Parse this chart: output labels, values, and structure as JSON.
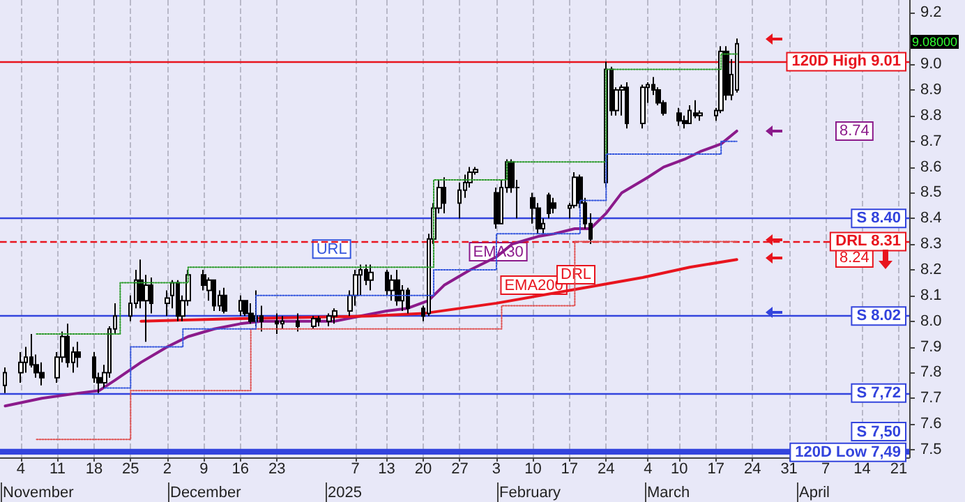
{
  "chart_data": {
    "type": "candlestick",
    "x": [
      "2024-11-01",
      "2024-11-04",
      "2024-11-05",
      "2024-11-06",
      "2024-11-07",
      "2024-11-08",
      "2024-11-11",
      "2024-11-12",
      "2024-11-13",
      "2024-11-14",
      "2024-11-15",
      "2024-11-18",
      "2024-11-19",
      "2024-11-20",
      "2024-11-21",
      "2024-11-22",
      "2024-11-25",
      "2024-11-26",
      "2024-11-27",
      "2024-11-28",
      "2024-11-29",
      "2024-12-02",
      "2024-12-03",
      "2024-12-04",
      "2024-12-05",
      "2024-12-06",
      "2024-12-09",
      "2024-12-10",
      "2024-12-11",
      "2024-12-12",
      "2024-12-13",
      "2024-12-16",
      "2024-12-17",
      "2024-12-18",
      "2024-12-19",
      "2024-12-20",
      "2024-12-23",
      "2024-12-24",
      "2024-12-27",
      "2024-12-30",
      "2024-12-31",
      "2025-01-02",
      "2025-01-03",
      "2025-01-06",
      "2025-01-07",
      "2025-01-08",
      "2025-01-09",
      "2025-01-10",
      "2025-01-13",
      "2025-01-14",
      "2025-01-15",
      "2025-01-16",
      "2025-01-17",
      "2025-01-20",
      "2025-01-21",
      "2025-01-22",
      "2025-01-23",
      "2025-01-24",
      "2025-01-27",
      "2025-01-28",
      "2025-01-29",
      "2025-01-30",
      "2025-02-03",
      "2025-02-04",
      "2025-02-05",
      "2025-02-06",
      "2025-02-07",
      "2025-02-10",
      "2025-02-11",
      "2025-02-12",
      "2025-02-13",
      "2025-02-14",
      "2025-02-17",
      "2025-02-18",
      "2025-02-19",
      "2025-02-20",
      "2025-02-21",
      "2025-02-24",
      "2025-02-25",
      "2025-02-26",
      "2025-02-27",
      "2025-02-28",
      "2025-03-03",
      "2025-03-04",
      "2025-03-05",
      "2025-03-06",
      "2025-03-07",
      "2025-03-10",
      "2025-03-11",
      "2025-03-12",
      "2025-03-13",
      "2025-03-14",
      "2025-03-17",
      "2025-03-18",
      "2025-03-19",
      "2025-03-20",
      "2025-03-21"
    ],
    "ohlc": [
      [
        7.75,
        7.82,
        7.72,
        7.8
      ],
      [
        7.8,
        7.88,
        7.76,
        7.84
      ],
      [
        7.84,
        7.9,
        7.8,
        7.86
      ],
      [
        7.86,
        7.95,
        7.82,
        7.83
      ],
      [
        7.83,
        7.87,
        7.78,
        7.8
      ],
      [
        7.8,
        7.84,
        7.75,
        7.78
      ],
      [
        7.78,
        7.88,
        7.76,
        7.86
      ],
      [
        7.86,
        7.96,
        7.84,
        7.94
      ],
      [
        7.94,
        7.99,
        7.82,
        7.84
      ],
      [
        7.84,
        7.9,
        7.8,
        7.88
      ],
      [
        7.88,
        7.92,
        7.82,
        7.86
      ],
      [
        7.86,
        7.88,
        7.76,
        7.78
      ],
      [
        7.78,
        7.8,
        7.72,
        7.76
      ],
      [
        7.76,
        7.83,
        7.74,
        7.8
      ],
      [
        7.8,
        7.98,
        7.78,
        7.97
      ],
      [
        7.97,
        8.07,
        7.95,
        8.02
      ],
      [
        8.02,
        8.1,
        8.0,
        8.07
      ],
      [
        8.07,
        8.2,
        8.05,
        8.16
      ],
      [
        8.16,
        8.24,
        8.05,
        8.08
      ],
      [
        8.08,
        8.18,
        7.92,
        8.14
      ],
      [
        8.14,
        8.17,
        8.03,
        8.07
      ],
      [
        8.07,
        8.12,
        8.02,
        8.09
      ],
      [
        8.1,
        8.16,
        8.05,
        8.15
      ],
      [
        8.15,
        8.16,
        8.0,
        8.02
      ],
      [
        8.02,
        8.1,
        8.0,
        8.08
      ],
      [
        8.08,
        8.2,
        8.06,
        8.18
      ],
      [
        8.18,
        8.2,
        8.12,
        8.14
      ],
      [
        8.12,
        8.17,
        8.08,
        8.16
      ],
      [
        8.16,
        8.16,
        8.04,
        8.06
      ],
      [
        8.06,
        8.12,
        8.04,
        8.1
      ],
      [
        8.1,
        8.13,
        8.03,
        8.04
      ],
      [
        8.04,
        8.1,
        8.02,
        8.08
      ],
      [
        8.08,
        8.08,
        8.02,
        8.03
      ],
      [
        8.03,
        8.07,
        7.99,
        8.0
      ],
      [
        8.0,
        8.12,
        7.98,
        8.02
      ],
      [
        8.02,
        8.06,
        7.96,
        8.0
      ],
      [
        8.0,
        8.03,
        7.95,
        7.99
      ],
      [
        7.99,
        8.02,
        7.97,
        8.0
      ],
      [
        8.0,
        8.03,
        7.96,
        7.98
      ],
      [
        7.98,
        8.02,
        7.97,
        8.01
      ],
      [
        8.01,
        8.02,
        7.98,
        8.0
      ],
      [
        8.0,
        8.03,
        7.98,
        8.02
      ],
      [
        8.02,
        8.05,
        7.99,
        8.04
      ],
      [
        8.04,
        8.12,
        8.02,
        8.1
      ],
      [
        8.1,
        8.2,
        8.06,
        8.18
      ],
      [
        8.18,
        8.22,
        8.1,
        8.2
      ],
      [
        8.2,
        8.22,
        8.14,
        8.16
      ],
      [
        8.16,
        8.22,
        8.12,
        8.19
      ],
      [
        8.19,
        8.2,
        8.1,
        8.12
      ],
      [
        8.12,
        8.18,
        8.08,
        8.16
      ],
      [
        8.16,
        8.2,
        8.06,
        8.08
      ],
      [
        8.08,
        8.14,
        8.04,
        8.12
      ],
      [
        8.12,
        8.13,
        8.03,
        8.05
      ],
      [
        8.05,
        8.06,
        8.0,
        8.02
      ],
      [
        8.03,
        8.34,
        8.02,
        8.32
      ],
      [
        8.32,
        8.46,
        8.3,
        8.44
      ],
      [
        8.44,
        8.55,
        8.42,
        8.52
      ],
      [
        8.52,
        8.56,
        8.42,
        8.46
      ],
      [
        8.46,
        8.54,
        8.4,
        8.51
      ],
      [
        8.51,
        8.57,
        8.48,
        8.54
      ],
      [
        8.54,
        8.6,
        8.52,
        8.58
      ],
      [
        8.58,
        8.6,
        8.57,
        8.59
      ],
      [
        8.5,
        8.52,
        8.36,
        8.38
      ],
      [
        8.38,
        8.55,
        8.38,
        8.52
      ],
      [
        8.52,
        8.63,
        8.5,
        8.62
      ],
      [
        8.62,
        8.63,
        8.5,
        8.52
      ],
      [
        8.52,
        8.55,
        8.4,
        8.52
      ],
      [
        8.48,
        8.5,
        8.38,
        8.44
      ],
      [
        8.44,
        8.46,
        8.34,
        8.36
      ],
      [
        8.36,
        8.4,
        8.34,
        8.38
      ],
      [
        8.49,
        8.5,
        8.4,
        8.42
      ],
      [
        8.46,
        8.48,
        8.42,
        8.44
      ],
      [
        8.44,
        8.46,
        8.4,
        8.45
      ],
      [
        8.45,
        8.58,
        8.44,
        8.56
      ],
      [
        8.56,
        8.57,
        8.44,
        8.46
      ],
      [
        8.46,
        8.48,
        8.36,
        8.38
      ],
      [
        8.38,
        8.42,
        8.3,
        8.32
      ],
      [
        8.54,
        9.01,
        8.52,
        8.98
      ],
      [
        8.98,
        8.99,
        8.8,
        8.82
      ],
      [
        8.82,
        8.91,
        8.8,
        8.9
      ],
      [
        8.9,
        8.92,
        8.8,
        8.91
      ],
      [
        8.91,
        8.93,
        8.75,
        8.77
      ],
      [
        8.77,
        8.92,
        8.75,
        8.91
      ],
      [
        8.91,
        8.93,
        8.85,
        8.92
      ],
      [
        8.92,
        8.95,
        8.88,
        8.9
      ],
      [
        8.9,
        8.91,
        8.84,
        8.85
      ],
      [
        8.85,
        8.86,
        8.8,
        8.81
      ],
      [
        8.81,
        8.83,
        8.76,
        8.78
      ],
      [
        8.78,
        8.8,
        8.75,
        8.77
      ],
      [
        8.77,
        8.84,
        8.77,
        8.82
      ],
      [
        8.81,
        8.86,
        8.79,
        8.8
      ],
      [
        8.8,
        8.82,
        8.78,
        8.81
      ],
      [
        8.8,
        8.83,
        8.78,
        8.82
      ],
      [
        8.82,
        9.07,
        8.81,
        9.05
      ],
      [
        9.05,
        9.07,
        8.86,
        8.88
      ],
      [
        8.88,
        9.02,
        8.86,
        8.96
      ],
      [
        8.9,
        9.1,
        8.89,
        9.08
      ]
    ],
    "series": [
      {
        "type": "line",
        "color": "#8b1a8b",
        "line_style": "solid",
        "x": [
          "2024-11-01",
          "2024-11-08",
          "2024-11-15",
          "2024-11-19",
          "2024-11-22",
          "2024-11-27",
          "2024-12-02",
          "2024-12-06",
          "2024-12-11",
          "2024-12-16",
          "2024-12-20",
          "2024-12-27",
          "2025-01-03",
          "2025-01-08",
          "2025-01-13",
          "2025-01-17",
          "2025-01-21",
          "2025-01-24",
          "2025-01-29",
          "2025-02-03",
          "2025-02-06",
          "2025-02-11",
          "2025-02-14",
          "2025-02-18",
          "2025-02-21",
          "2025-02-24",
          "2025-02-27",
          "2025-03-04",
          "2025-03-07",
          "2025-03-11",
          "2025-03-14",
          "2025-03-18",
          "2025-03-21"
        ],
        "values": [
          7.67,
          7.7,
          7.72,
          7.73,
          7.77,
          7.84,
          7.9,
          7.94,
          7.97,
          7.99,
          8.0,
          8.0,
          8.0,
          8.02,
          8.04,
          8.05,
          8.08,
          8.14,
          8.2,
          8.25,
          8.3,
          8.33,
          8.34,
          8.36,
          8.36,
          8.42,
          8.5,
          8.56,
          8.6,
          8.63,
          8.66,
          8.69,
          8.74
        ]
      },
      {
        "type": "line",
        "color": "#e8141e",
        "line_style": "solid",
        "x": [
          "2024-11-27",
          "2024-12-16",
          "2025-01-10",
          "2025-01-20",
          "2025-02-03",
          "2025-02-17",
          "2025-03-03",
          "2025-03-12",
          "2025-03-21"
        ],
        "values": [
          8.0,
          8.01,
          8.02,
          8.03,
          8.07,
          8.12,
          8.17,
          8.21,
          8.24
        ]
      },
      {
        "type": "step",
        "color": "#2a9a2a",
        "line_style": "dotted",
        "x": [
          "2024-11-07",
          "2024-11-23",
          "2024-12-06",
          "2025-01-22",
          "2025-02-05",
          "2025-02-24",
          "2025-03-18",
          "2025-03-21"
        ],
        "values": [
          7.95,
          8.15,
          8.21,
          8.55,
          8.62,
          8.98,
          9.04,
          9.04
        ]
      },
      {
        "type": "step",
        "color": "#e05050",
        "line_style": "dotted",
        "x": [
          "2024-11-07",
          "2024-11-25",
          "2024-12-18",
          "2025-02-04",
          "2025-02-18",
          "2025-03-21"
        ],
        "values": [
          7.54,
          7.73,
          7.97,
          8.06,
          8.31,
          8.31
        ]
      },
      {
        "type": "step",
        "color": "#3355dd",
        "line_style": "dotted",
        "x": [
          "2024-11-20",
          "2024-11-25",
          "2024-12-05",
          "2024-12-19",
          "2025-01-22",
          "2025-02-03",
          "2025-02-19",
          "2025-02-24",
          "2025-03-18",
          "2025-03-21"
        ],
        "values": [
          7.74,
          7.9,
          7.97,
          8.1,
          8.2,
          8.34,
          8.47,
          8.65,
          8.7,
          8.7
        ]
      }
    ],
    "xlim": [
      "2024-10-31",
      "2025-04-23"
    ],
    "xticks": [
      {
        "value": "2024-11-04",
        "label": "4"
      },
      {
        "value": "2024-11-11",
        "label": "11"
      },
      {
        "value": "2024-11-18",
        "label": "18"
      },
      {
        "value": "2024-11-25",
        "label": "25"
      },
      {
        "value": "2024-12-02",
        "label": "2"
      },
      {
        "value": "2024-12-09",
        "label": "9"
      },
      {
        "value": "2024-12-16",
        "label": "16"
      },
      {
        "value": "2024-12-23",
        "label": "23"
      },
      {
        "value": "2025-01-07",
        "label": "7"
      },
      {
        "value": "2025-01-13",
        "label": "13"
      },
      {
        "value": "2025-01-20",
        "label": "20"
      },
      {
        "value": "2025-01-27",
        "label": "27"
      },
      {
        "value": "2025-02-03",
        "label": "3"
      },
      {
        "value": "2025-02-10",
        "label": "10"
      },
      {
        "value": "2025-02-17",
        "label": "17"
      },
      {
        "value": "2025-02-24",
        "label": "24"
      },
      {
        "value": "2025-03-04",
        "label": "4"
      },
      {
        "value": "2025-03-10",
        "label": "10"
      },
      {
        "value": "2025-03-17",
        "label": "17"
      },
      {
        "value": "2025-03-24",
        "label": "24"
      },
      {
        "value": "2025-03-31",
        "label": "31"
      },
      {
        "value": "2025-04-07",
        "label": "7"
      },
      {
        "value": "2025-04-14",
        "label": "14"
      },
      {
        "value": "2025-04-21",
        "label": "21"
      }
    ],
    "ylim": [
      7.47,
      9.25
    ],
    "yticks": [
      7.5,
      7.6,
      7.7,
      7.8,
      7.9,
      {
        "value": 8,
        "label": "8.0"
      },
      8.1,
      8.2,
      8.3,
      8.4,
      8.5,
      8.6,
      8.7,
      8.8,
      8.9,
      {
        "value": 9,
        "label": "9.0"
      },
      {
        "value": 9.1,
        "label": null
      },
      9.2
    ],
    "ref_lines": [
      {
        "axis": "y",
        "value": 9.01,
        "label": "120D High 9.01",
        "color": "#e8141e",
        "line_style": "solid"
      },
      {
        "axis": "y",
        "value": 8.4,
        "label": "S 8.40",
        "color": "#3344dd",
        "line_style": "solid"
      },
      {
        "axis": "y",
        "value": 8.31,
        "label": "DRL 8.31",
        "color": "#e8141e",
        "line_style": "dashed"
      },
      {
        "axis": "y",
        "value": 8.02,
        "label": "S 8.02",
        "color": "#3344dd",
        "line_style": "solid"
      },
      {
        "axis": "y",
        "value": 7.72,
        "label": "S 7,72",
        "color": "#3344dd",
        "line_style": "solid"
      },
      {
        "axis": "y",
        "value": 7.5,
        "label": "S 7,50",
        "color": "#3344dd",
        "line_style": "solid"
      },
      {
        "axis": "y",
        "value": 7.49,
        "label": "120D Low 7,49",
        "color": "#3344dd",
        "line_style": "solid"
      }
    ],
    "annotations": [
      {
        "text": "URL",
        "x": "2024-12-30",
        "y": 8.21
      },
      {
        "text": "EMA30",
        "x": "2025-01-29",
        "y": 8.2
      },
      {
        "text": "EMA200",
        "x": "2025-02-04",
        "y": 8.07
      },
      "DRL",
      "8.74",
      "8.24",
      "9.08000",
      "November",
      "December",
      "2025",
      "February",
      "March",
      "April"
    ],
    "grid": "x",
    "marker": "none"
  }
}
